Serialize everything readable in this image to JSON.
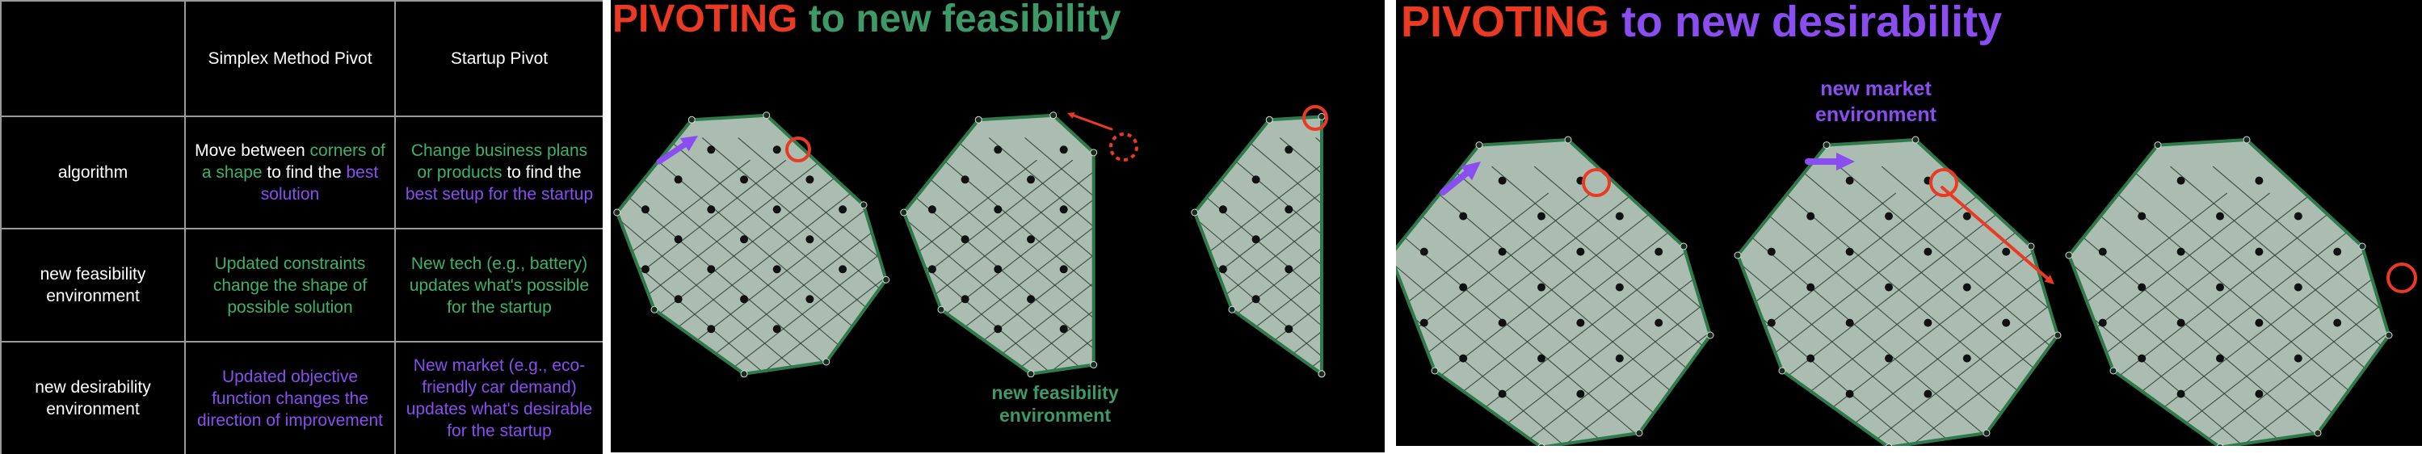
{
  "table": {
    "headers": [
      "",
      "Simplex Method Pivot",
      "Startup Pivot"
    ],
    "rows": [
      {
        "label": "algorithm",
        "simplex": [
          [
            "Move between ",
            "w"
          ],
          [
            "corners of a shape",
            "g"
          ],
          [
            " to find the ",
            "w"
          ],
          [
            "best solution",
            "p"
          ]
        ],
        "startup": [
          [
            "Change business plans or products",
            "g"
          ],
          [
            " to find the ",
            "w"
          ],
          [
            "best setup for the startup",
            "p"
          ]
        ]
      },
      {
        "label": "new feasibility environment",
        "simplex": [
          [
            "Updated constraints change the shape of possible solution",
            "g"
          ]
        ],
        "startup": [
          [
            "New tech (e.g., battery) updates what's possible for the startup",
            "g"
          ]
        ]
      },
      {
        "label": "new desirability environment",
        "simplex": [
          [
            "Updated objective function changes the direction of improvement",
            "p"
          ]
        ],
        "startup": [
          [
            "New market (e.g., eco-friendly car demand) updates what's desirable for the startup",
            "p"
          ]
        ]
      }
    ]
  },
  "feasibility_panel": {
    "title_word": "PIVOTING",
    "title_rest": " to new feasibility",
    "caption": "new feasibility environment"
  },
  "desirability_panel": {
    "title_word": "PIVOTING",
    "title_rest": " to new desirability",
    "caption": "new market environment"
  },
  "colors": {
    "feasible": "#3bb36b",
    "desirable": "#8a4df0",
    "highlight": "#ea3a23",
    "polygon_fill": "#b9cdbf",
    "polygon_edge": "#2f7a4c"
  }
}
